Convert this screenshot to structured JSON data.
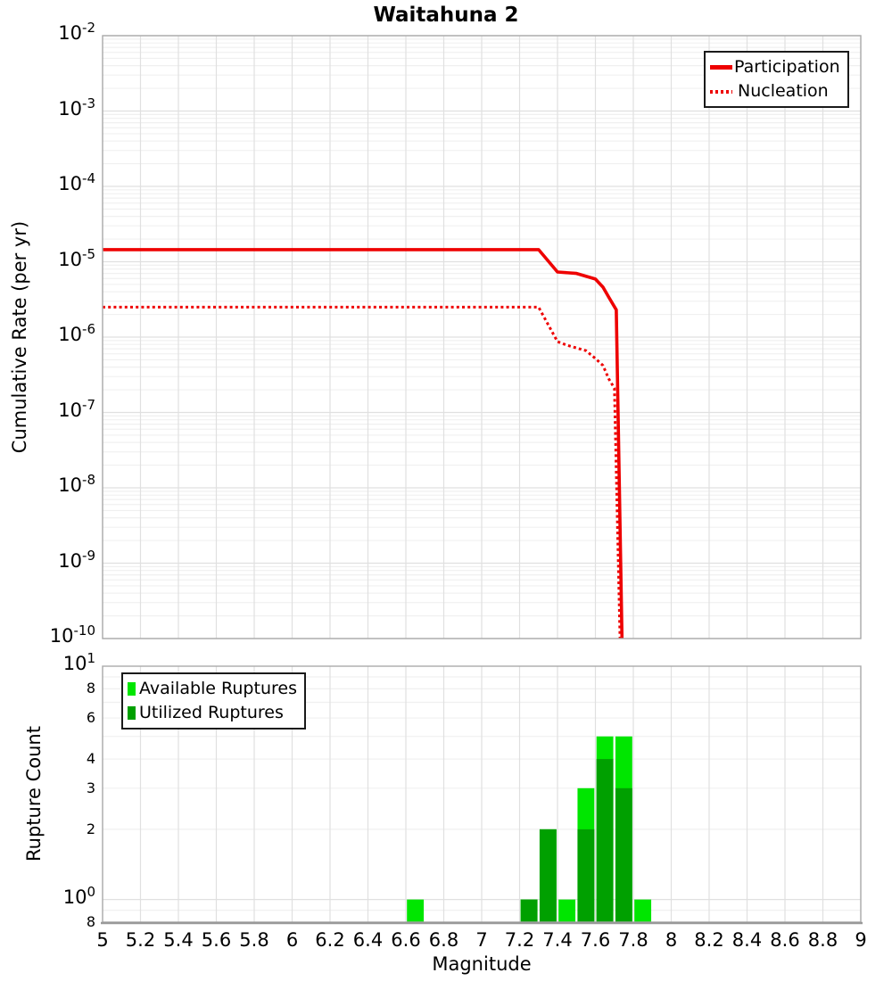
{
  "figure": {
    "title": "Waitahuna 2"
  },
  "colors": {
    "line_red": "#ee0000",
    "available_green": "#00e600",
    "utilized_green": "#00a000",
    "grid_major": "#e0e0e0",
    "grid_minor": "#f0f0f0",
    "frame": "#aaaaaa",
    "baseline": "#999999"
  },
  "chart_data": [
    {
      "type": "line",
      "title": "Waitahuna 2",
      "ylabel": "Cumulative Rate (per yr)",
      "xlabel": "",
      "yscale": "log",
      "ylim": [
        1e-10,
        0.01
      ],
      "xlim": [
        5,
        9
      ],
      "grid": true,
      "legend_position": "top-right",
      "yticks": [
        {
          "value": 0.01,
          "base": "10",
          "sup": "-2"
        },
        {
          "value": 0.001,
          "base": "10",
          "sup": "-3"
        },
        {
          "value": 0.0001,
          "base": "10",
          "sup": "-4"
        },
        {
          "value": 1e-05,
          "base": "10",
          "sup": "-5"
        },
        {
          "value": 1e-06,
          "base": "10",
          "sup": "-6"
        },
        {
          "value": 1e-07,
          "base": "10",
          "sup": "-7"
        },
        {
          "value": 1e-08,
          "base": "10",
          "sup": "-8"
        },
        {
          "value": 1e-09,
          "base": "10",
          "sup": "-9"
        },
        {
          "value": 1e-10,
          "base": "10",
          "sup": "-10"
        }
      ],
      "series": [
        {
          "name": "Participation",
          "color": "#ee0000",
          "style": "solid",
          "points": [
            [
              5.0,
              1.45e-05
            ],
            [
              7.3,
              1.45e-05
            ],
            [
              7.4,
              7.3e-06
            ],
            [
              7.5,
              7e-06
            ],
            [
              7.6,
              5.9e-06
            ],
            [
              7.64,
              4.6e-06
            ],
            [
              7.67,
              3.4e-06
            ],
            [
              7.71,
              2.3e-06
            ],
            [
              7.74,
              1e-10
            ]
          ]
        },
        {
          "name": "Nucleation",
          "color": "#ee0000",
          "style": "dotted",
          "points": [
            [
              5.0,
              2.5e-06
            ],
            [
              7.3,
              2.5e-06
            ],
            [
              7.4,
              8.7e-07
            ],
            [
              7.45,
              7.8e-07
            ],
            [
              7.55,
              6.6e-07
            ],
            [
              7.6,
              5.2e-07
            ],
            [
              7.64,
              4.2e-07
            ],
            [
              7.67,
              2.8e-07
            ],
            [
              7.7,
              2.1e-07
            ],
            [
              7.73,
              1e-10
            ]
          ]
        }
      ]
    },
    {
      "type": "bar",
      "ylabel": "Rupture Count",
      "xlabel": "Magnitude",
      "yscale": "log",
      "ylim": [
        0.8,
        10
      ],
      "xlim": [
        5,
        9
      ],
      "bin_width": 0.1,
      "grid": true,
      "legend_position": "top-left",
      "yticks": [
        {
          "value": 10,
          "base": "10",
          "sup": "1"
        },
        {
          "value": 8,
          "base": "8"
        },
        {
          "value": 6,
          "base": "6"
        },
        {
          "value": 4,
          "base": "4"
        },
        {
          "value": 3,
          "base": "3"
        },
        {
          "value": 2,
          "base": "2"
        },
        {
          "value": 1,
          "base": "10",
          "sup": "0"
        },
        {
          "value": 0.8,
          "base": "8"
        }
      ],
      "xticks": [
        {
          "value": 5,
          "label": "5"
        },
        {
          "value": 5.2,
          "label": "5.2"
        },
        {
          "value": 5.4,
          "label": "5.4"
        },
        {
          "value": 5.6,
          "label": "5.6"
        },
        {
          "value": 5.8,
          "label": "5.8"
        },
        {
          "value": 6,
          "label": "6"
        },
        {
          "value": 6.2,
          "label": "6.2"
        },
        {
          "value": 6.4,
          "label": "6.4"
        },
        {
          "value": 6.6,
          "label": "6.6"
        },
        {
          "value": 6.8,
          "label": "6.8"
        },
        {
          "value": 7,
          "label": "7"
        },
        {
          "value": 7.2,
          "label": "7.2"
        },
        {
          "value": 7.4,
          "label": "7.4"
        },
        {
          "value": 7.6,
          "label": "7.6"
        },
        {
          "value": 7.8,
          "label": "7.8"
        },
        {
          "value": 8,
          "label": "8"
        },
        {
          "value": 8.2,
          "label": "8.2"
        },
        {
          "value": 8.4,
          "label": "8.4"
        },
        {
          "value": 8.6,
          "label": "8.6"
        },
        {
          "value": 8.8,
          "label": "8.8"
        },
        {
          "value": 9,
          "label": "9"
        }
      ],
      "series": [
        {
          "name": "Available Ruptures",
          "color": "#00e600"
        },
        {
          "name": "Utilized Ruptures",
          "color": "#00a000"
        }
      ],
      "bars": [
        {
          "bin": [
            6.6,
            6.7
          ],
          "available": 1,
          "utilized": 0
        },
        {
          "bin": [
            7.2,
            7.3
          ],
          "available": 1,
          "utilized": 1
        },
        {
          "bin": [
            7.3,
            7.4
          ],
          "available": 2,
          "utilized": 2
        },
        {
          "bin": [
            7.4,
            7.5
          ],
          "available": 1,
          "utilized": 0
        },
        {
          "bin": [
            7.5,
            7.6
          ],
          "available": 3,
          "utilized": 2
        },
        {
          "bin": [
            7.6,
            7.7
          ],
          "available": 5,
          "utilized": 4
        },
        {
          "bin": [
            7.7,
            7.8
          ],
          "available": 5,
          "utilized": 3
        },
        {
          "bin": [
            7.8,
            7.9
          ],
          "available": 1,
          "utilized": 0
        }
      ]
    }
  ]
}
